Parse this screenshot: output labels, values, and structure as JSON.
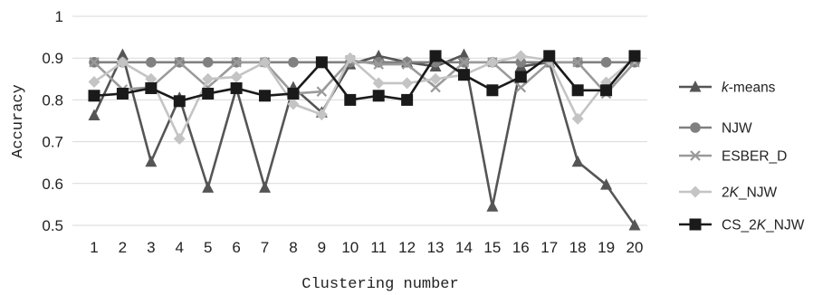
{
  "chart_data": {
    "type": "line",
    "title": "",
    "xlabel": "Clustering number",
    "ylabel": "Accuracy",
    "categories": [
      "1",
      "2",
      "3",
      "4",
      "5",
      "6",
      "7",
      "8",
      "9",
      "10",
      "11",
      "12",
      "13",
      "14",
      "15",
      "16",
      "17",
      "18",
      "19",
      "20"
    ],
    "ylim": [
      0.5,
      1
    ],
    "yticks": [
      "0.5",
      "0.6",
      "0.7",
      "0.8",
      "0.9",
      "1"
    ],
    "grid": true,
    "legend_position": "right",
    "series": [
      {
        "name": "k-means",
        "name_parts": [
          {
            "t": "k",
            "i": true
          },
          {
            "t": "-means",
            "i": false
          }
        ],
        "color": "#555555",
        "marker": "triangle",
        "values": [
          0.763,
          0.908,
          0.652,
          0.805,
          0.59,
          0.828,
          0.59,
          0.83,
          0.77,
          0.885,
          0.905,
          0.89,
          0.88,
          0.908,
          0.545,
          0.88,
          0.89,
          0.652,
          0.597,
          0.5
        ]
      },
      {
        "name": "NJW",
        "name_parts": [
          {
            "t": "NJW",
            "i": false
          }
        ],
        "color": "#808080",
        "marker": "circle",
        "values": [
          0.89,
          0.89,
          0.89,
          0.89,
          0.89,
          0.89,
          0.89,
          0.89,
          0.89,
          0.89,
          0.89,
          0.89,
          0.89,
          0.89,
          0.89,
          0.89,
          0.89,
          0.89,
          0.89,
          0.89
        ]
      },
      {
        "name": "ESBER_D",
        "name_parts": [
          {
            "t": "ESBER_D",
            "i": false
          }
        ],
        "color": "#9a9a9a",
        "marker": "cross",
        "values": [
          0.89,
          0.825,
          0.83,
          0.89,
          0.83,
          0.89,
          0.89,
          0.815,
          0.82,
          0.895,
          0.885,
          0.885,
          0.83,
          0.89,
          0.89,
          0.83,
          0.89,
          0.89,
          0.815,
          0.89
        ]
      },
      {
        "name": "2K_NJW",
        "name_parts": [
          {
            "t": "2",
            "i": false
          },
          {
            "t": "K",
            "i": true
          },
          {
            "t": "_NJW",
            "i": false
          }
        ],
        "color": "#c4c4c4",
        "marker": "diamond",
        "values": [
          0.843,
          0.89,
          0.85,
          0.707,
          0.85,
          0.855,
          0.89,
          0.79,
          0.765,
          0.9,
          0.84,
          0.84,
          0.85,
          0.86,
          0.89,
          0.905,
          0.895,
          0.755,
          0.842,
          0.9
        ]
      },
      {
        "name": "CS_2K_NJW",
        "name_parts": [
          {
            "t": "CS_2",
            "i": false
          },
          {
            "t": "K",
            "i": true
          },
          {
            "t": "_NJW",
            "i": false
          }
        ],
        "color": "#1a1a1a",
        "marker": "square",
        "values": [
          0.81,
          0.815,
          0.828,
          0.797,
          0.815,
          0.828,
          0.81,
          0.815,
          0.89,
          0.8,
          0.81,
          0.8,
          0.905,
          0.86,
          0.823,
          0.855,
          0.905,
          0.823,
          0.823,
          0.905
        ]
      }
    ]
  }
}
